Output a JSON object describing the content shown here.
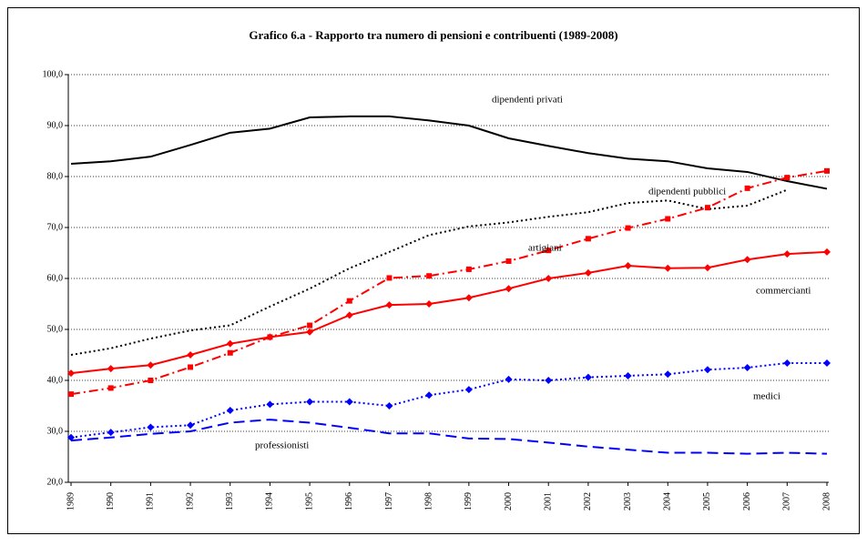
{
  "chart_data": {
    "type": "line",
    "title": "Grafico 6.a  -  Rapporto tra numero di pensioni e contribuenti (1989-2008)",
    "categories": [
      "1989",
      "1990",
      "1991",
      "1992",
      "1993",
      "1994",
      "1995",
      "1996",
      "1997",
      "1998",
      "1999",
      "2000",
      "2001",
      "2002",
      "2003",
      "2004",
      "2005",
      "2006",
      "2007",
      "2008"
    ],
    "ylim": [
      20,
      100
    ],
    "yticks": [
      {
        "value": 20,
        "label": "20,0"
      },
      {
        "value": 30,
        "label": "30,0"
      },
      {
        "value": 40,
        "label": "40,0"
      },
      {
        "value": 50,
        "label": "50,0"
      },
      {
        "value": 60,
        "label": "60,0"
      },
      {
        "value": 70,
        "label": "70,0"
      },
      {
        "value": 80,
        "label": "80,0"
      },
      {
        "value": 90,
        "label": "90,0"
      },
      {
        "value": 100,
        "label": "100,0"
      }
    ],
    "grid": true,
    "series": [
      {
        "name": "dipendenti privati",
        "color": "#000000",
        "linestyle": "solid",
        "marker": null,
        "values": [
          82.5,
          83,
          83.9,
          86.2,
          88.6,
          89.4,
          91.6,
          91.8,
          91.8,
          91,
          90,
          87.5,
          86,
          84.6,
          83.5,
          83,
          81.6,
          80.9,
          79.1,
          77.6
        ]
      },
      {
        "name": "dipendenti pubblici",
        "color": "#000000",
        "linestyle": "dot",
        "marker": null,
        "values": [
          45,
          46.3,
          48.2,
          49.8,
          50.8,
          54.5,
          58,
          62,
          65.2,
          68.5,
          70.2,
          71,
          72.1,
          73,
          74.8,
          75.3,
          73.6,
          74.3,
          77.4,
          null
        ]
      },
      {
        "name": "artigiani",
        "color": "#ff0000",
        "linestyle": "dashdot",
        "marker": "square",
        "values": [
          37.3,
          38.5,
          40,
          42.6,
          45.4,
          48.5,
          50.8,
          55.6,
          60.1,
          60.5,
          61.8,
          63.4,
          65.5,
          67.8,
          69.9,
          71.7,
          73.9,
          77.7,
          79.8,
          81.1
        ]
      },
      {
        "name": "commercianti",
        "color": "#ff0000",
        "linestyle": "solid",
        "marker": "diamond",
        "values": [
          41.4,
          42.3,
          43,
          45,
          47.2,
          48.5,
          49.5,
          52.8,
          54.8,
          55,
          56.2,
          58,
          60,
          61.1,
          62.5,
          62,
          62.1,
          63.7,
          64.8,
          65.2
        ]
      },
      {
        "name": "medici",
        "color": "#0000ff",
        "linestyle": "dot",
        "marker": "diamond",
        "values": [
          28.8,
          29.8,
          30.8,
          31.2,
          34.1,
          35.3,
          35.8,
          35.8,
          35,
          37.1,
          38.2,
          40.2,
          40,
          40.6,
          40.9,
          41.2,
          42.1,
          42.5,
          43.4,
          43.4
        ]
      },
      {
        "name": "professionisti",
        "color": "#0000ff",
        "linestyle": "longdash",
        "marker": null,
        "values": [
          28.2,
          28.8,
          29.5,
          30,
          31.7,
          32.3,
          31.7,
          30.7,
          29.6,
          29.6,
          28.6,
          28.5,
          27.8,
          27,
          26.4,
          25.8,
          25.8,
          25.6,
          25.8,
          25.6
        ]
      }
    ]
  }
}
